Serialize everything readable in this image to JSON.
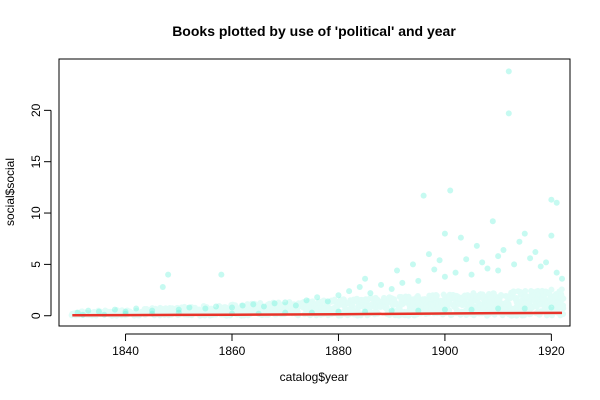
{
  "chart_data": {
    "type": "scatter",
    "title": "Books plotted by use of 'political' and year",
    "xlabel": "catalog$year",
    "ylabel": "social$social",
    "xlim": [
      1827.5,
      1923.5
    ],
    "ylim": [
      -1,
      25
    ],
    "x_ticks": [
      1840,
      1860,
      1880,
      1900,
      1920
    ],
    "y_ticks": [
      0,
      5,
      10,
      15,
      20
    ],
    "grid": false,
    "legend": "none",
    "point_color": "#5CF0D8",
    "line_color": "#E8342A",
    "series": [
      {
        "kind": "points",
        "x": [
          1831,
          1833,
          1835,
          1838,
          1840,
          1842,
          1845,
          1847,
          1848,
          1850,
          1852,
          1855,
          1857,
          1858,
          1860,
          1862,
          1864,
          1866,
          1868,
          1870,
          1872,
          1874,
          1876,
          1878,
          1880,
          1882,
          1884,
          1885,
          1886,
          1888,
          1890,
          1891,
          1892,
          1894,
          1895,
          1896,
          1897,
          1898,
          1899,
          1900,
          1900,
          1901,
          1902,
          1903,
          1904,
          1905,
          1906,
          1907,
          1908,
          1909,
          1910,
          1910,
          1911,
          1912,
          1912,
          1913,
          1914,
          1915,
          1916,
          1917,
          1918,
          1919,
          1920,
          1920,
          1921,
          1921,
          1922,
          1860,
          1870,
          1880,
          1890,
          1900,
          1910,
          1920,
          1865,
          1875,
          1885,
          1895,
          1905,
          1915,
          1850,
          1845,
          1840,
          1836,
          1832
        ],
        "y": [
          0.3,
          0.5,
          0.4,
          0.6,
          0.4,
          0.7,
          0.5,
          2.8,
          4.0,
          0.6,
          0.8,
          0.7,
          0.9,
          4.0,
          0.8,
          1.0,
          1.1,
          0.9,
          1.2,
          1.3,
          1.0,
          1.5,
          1.8,
          1.4,
          2.0,
          2.4,
          2.8,
          3.6,
          2.2,
          3.0,
          2.6,
          4.4,
          3.2,
          5.0,
          3.4,
          11.7,
          6.0,
          4.5,
          5.4,
          3.8,
          8.0,
          12.2,
          4.2,
          7.6,
          5.5,
          4.0,
          6.8,
          5.2,
          4.6,
          9.2,
          5.8,
          4.4,
          6.4,
          19.7,
          23.8,
          5.0,
          7.2,
          8.0,
          5.6,
          6.2,
          4.8,
          5.2,
          11.3,
          7.8,
          11.0,
          4.2,
          3.6,
          0.2,
          0.3,
          0.4,
          0.5,
          0.6,
          0.7,
          0.8,
          0.2,
          0.3,
          0.4,
          0.5,
          0.6,
          0.7,
          0.3,
          0.2,
          0.2,
          0.1,
          0.1
        ]
      },
      {
        "kind": "smooth-line",
        "x": [
          1830,
          1840,
          1850,
          1860,
          1870,
          1880,
          1890,
          1900,
          1910,
          1922
        ],
        "y": [
          0.05,
          0.06,
          0.08,
          0.1,
          0.12,
          0.15,
          0.18,
          0.22,
          0.25,
          0.28
        ]
      }
    ]
  }
}
